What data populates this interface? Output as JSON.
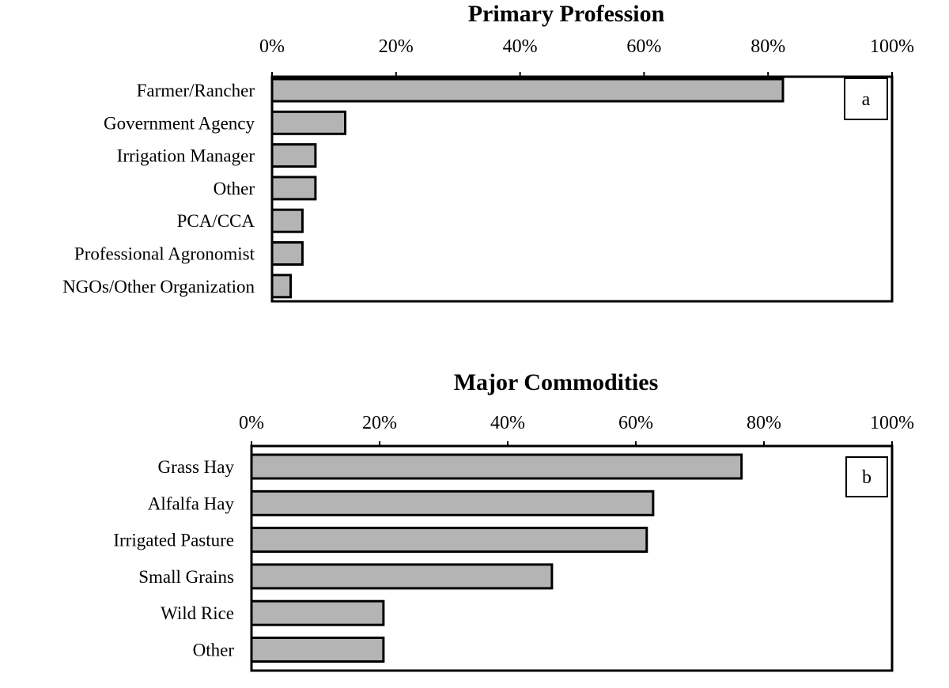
{
  "chart_data": [
    {
      "type": "bar",
      "orientation": "horizontal",
      "title": "Primary Profession",
      "panel_label": "a",
      "categories": [
        "Farmer/Rancher",
        "Government Agency",
        "Irrigation Manager",
        "Other",
        "PCA/CCA",
        "Professional Agronomist",
        "NGOs/Other Organization"
      ],
      "values": [
        82.4,
        11.8,
        7.0,
        7.0,
        4.9,
        4.9,
        3.0
      ],
      "xlim": [
        0,
        100
      ],
      "ticks": [
        "0%",
        "20%",
        "40%",
        "60%",
        "80%",
        "100%"
      ],
      "xlabel": "",
      "ylabel": "",
      "bar_color": "#b4b4b4",
      "grid": false
    },
    {
      "type": "bar",
      "orientation": "horizontal",
      "title": "Major Commodities",
      "panel_label": "b",
      "categories": [
        "Grass Hay",
        "Alfalfa Hay",
        "Irrigated Pasture",
        "Small Grains",
        "Wild Rice",
        "Other"
      ],
      "values": [
        76.5,
        62.7,
        61.7,
        46.9,
        20.6,
        20.6
      ],
      "xlim": [
        0,
        100
      ],
      "ticks": [
        "0%",
        "20%",
        "40%",
        "60%",
        "80%",
        "100%"
      ],
      "xlabel": "",
      "ylabel": "",
      "bar_color": "#b4b4b4",
      "grid": false
    }
  ]
}
